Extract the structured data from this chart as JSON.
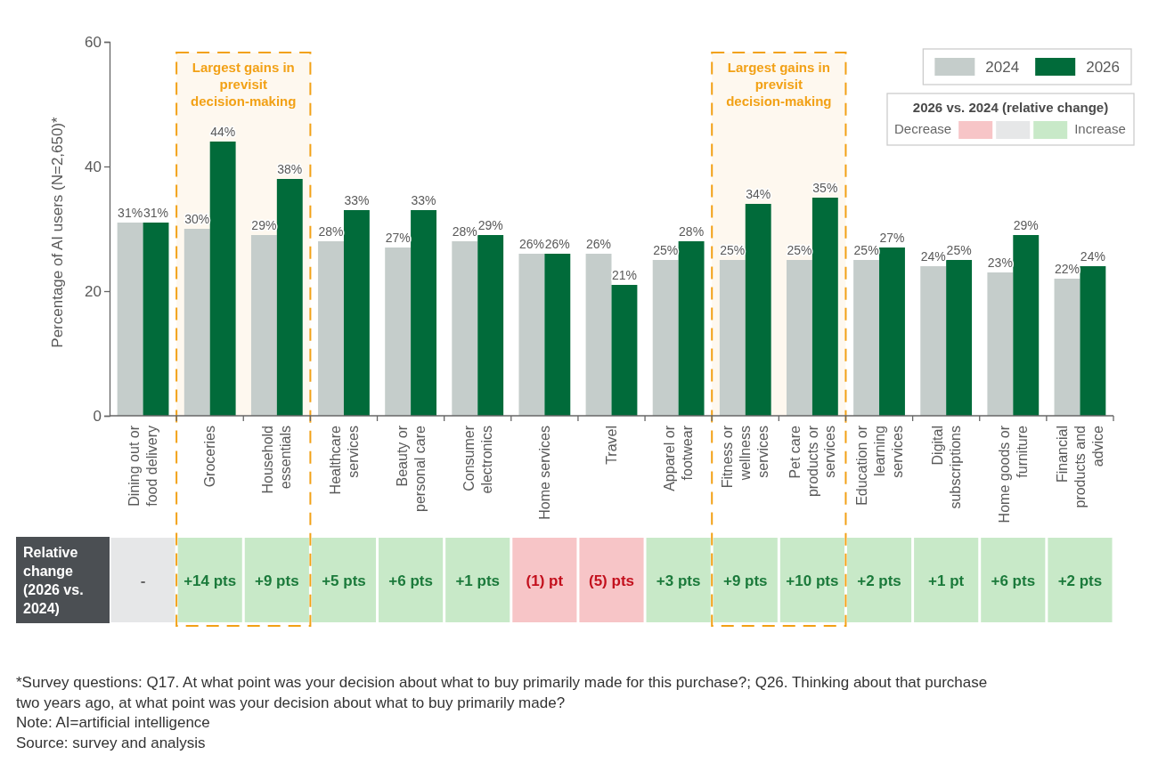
{
  "chart_data": [
    {
      "type": "bar",
      "categories": [
        "Dining out or food delivery",
        "Groceries",
        "Household essentials",
        "Healthcare services",
        "Beauty or personal care",
        "Consumer electronics",
        "Home services",
        "Travel",
        "Apparel or footwear",
        "Fitness or wellness services",
        "Pet care products or services",
        "Education or learning services",
        "Digital subscriptions",
        "Home goods or furniture",
        "Financial products and advice"
      ],
      "series": [
        {
          "name": "2024",
          "color": "#c5cdcb",
          "values": [
            31,
            30,
            29,
            28,
            27,
            28,
            26,
            26,
            25,
            25,
            25,
            25,
            24,
            23,
            22
          ],
          "value_labels": [
            "31%",
            "30%",
            "29%",
            "28%",
            "27%",
            "28%",
            "26%",
            "26%",
            "25%",
            "25%",
            "25%",
            "25%",
            "24%",
            "23%",
            "22%"
          ]
        },
        {
          "name": "2026",
          "color": "#016b3a",
          "values": [
            31,
            44,
            38,
            33,
            33,
            29,
            26,
            21,
            28,
            34,
            35,
            27,
            25,
            29,
            24
          ],
          "value_labels": [
            "31%",
            "44%",
            "38%",
            "33%",
            "33%",
            "29%",
            "26%",
            "21%",
            "28%",
            "34%",
            "35%",
            "27%",
            "25%",
            "29%",
            "24%"
          ]
        }
      ],
      "ylabel": "Percentage of AI users (N=2,650)*",
      "ylim": [
        0,
        60
      ],
      "yticks": [
        0,
        20,
        40,
        60
      ],
      "legend": "top right",
      "bands": [
        {
          "axis": "x",
          "from": "Groceries",
          "to": "Household essentials",
          "label": "Largest gains in previsit decision-making",
          "color": "#f2a116"
        },
        {
          "axis": "x",
          "from": "Fitness or wellness services",
          "to": "Pet care products or services",
          "label": "Largest gains in previsit decision-making",
          "color": "#f2a116"
        }
      ],
      "annotations": [
        "*Survey questions: Q17. At what point was your decision about what to buy primarily made for this purchase?; Q26. Thinking about that purchase two years ago, at what point was your decision about what to buy primarily made?",
        "Note: AI=artificial intelligence",
        "Source: survey and analysis"
      ]
    },
    {
      "type": "heatmap",
      "categories": [
        "Dining out or food delivery",
        "Groceries",
        "Household essentials",
        "Healthcare services",
        "Beauty or personal care",
        "Consumer electronics",
        "Home services",
        "Travel",
        "Apparel or footwear",
        "Fitness or wellness services",
        "Pet care products or services",
        "Education or learning services",
        "Digital subscriptions",
        "Home goods or furniture",
        "Financial products and advice"
      ],
      "y_categories": [
        "Relative change (2026 vs. 2024)"
      ],
      "cells": [
        [
          null,
          14,
          9,
          5,
          6,
          1,
          -1,
          -5,
          3,
          9,
          10,
          2,
          1,
          6,
          2
        ]
      ],
      "cell_labels": [
        [
          "-",
          "+14 pts",
          "+9 pts",
          "+5 pts",
          "+6 pts",
          "+1 pts",
          "(1) pt",
          "(5) pts",
          "+3 pts",
          "+9 pts",
          "+10 pts",
          "+2 pts",
          "+1 pt",
          "+6 pts",
          "+2 pts"
        ]
      ],
      "colors": [
        "#e6e7e8",
        "#c8e9c8",
        "#c8e9c8",
        "#c8e9c8",
        "#c8e9c8",
        "#c8e9c8",
        "#f7c5c7",
        "#f7c5c7",
        "#c8e9c8",
        "#c8e9c8",
        "#c8e9c8",
        "#c8e9c8",
        "#c8e9c8",
        "#c8e9c8",
        "#c8e9c8"
      ],
      "tick_labels": "y",
      "legend_title": "2026 vs. 2024 (relative change)",
      "annotations": [
        "Decrease",
        "Increase"
      ]
    }
  ]
}
